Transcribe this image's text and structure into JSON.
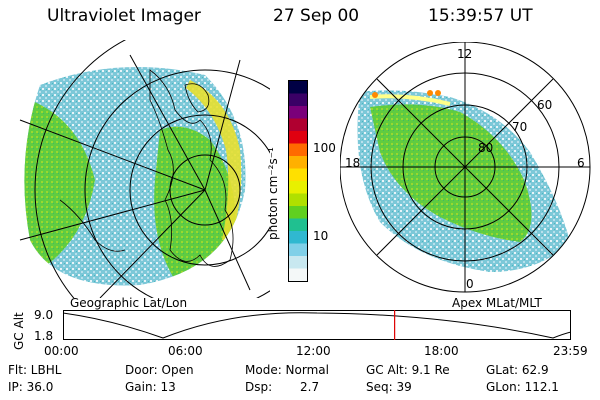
{
  "header": {
    "instrument": "Ultraviolet Imager",
    "date": "27 Sep 00",
    "time": "15:39:57 UT"
  },
  "left_panel": {
    "caption": "Geographic Lat/Lon"
  },
  "right_panel": {
    "caption": "Apex MLat/MLT",
    "mlt_labels": [
      "12",
      "18",
      "6",
      "0"
    ],
    "lat_labels": [
      "60",
      "70",
      "80"
    ]
  },
  "colorbar": {
    "unit_label": "photon cm⁻²s⁻¹",
    "ticks": [
      "100",
      "10"
    ],
    "colors": [
      "#000044",
      "#3a0066",
      "#7a007a",
      "#b00030",
      "#e00010",
      "#ff6a00",
      "#ffb000",
      "#ffe000",
      "#e8f000",
      "#b0e000",
      "#60d020",
      "#20c090",
      "#30b8d0",
      "#80d0e8",
      "#c8e8f0",
      "#f4f8f8"
    ]
  },
  "altitude_plot": {
    "ylabel": "GC Alt",
    "y_ticks": [
      "9.0",
      "1.8"
    ],
    "x_ticks": [
      "00:00",
      "06:00",
      "12:00",
      "18:00",
      "23:59"
    ],
    "current_time_fraction": 0.6528,
    "marker_color": "#dd0000"
  },
  "info": {
    "flt": "Flt: LBHL",
    "ip": "IP: 36.0",
    "door": "Door: Open",
    "gain": "Gain: 13",
    "mode": "Mode: Normal",
    "dsp_label": "Dsp:",
    "dsp_value": "2.7",
    "gc_alt": "GC Alt: 9.1 Re",
    "seq": "Seq: 39",
    "glat": "GLat:  62.9",
    "glon": "GLon: 112.1"
  }
}
